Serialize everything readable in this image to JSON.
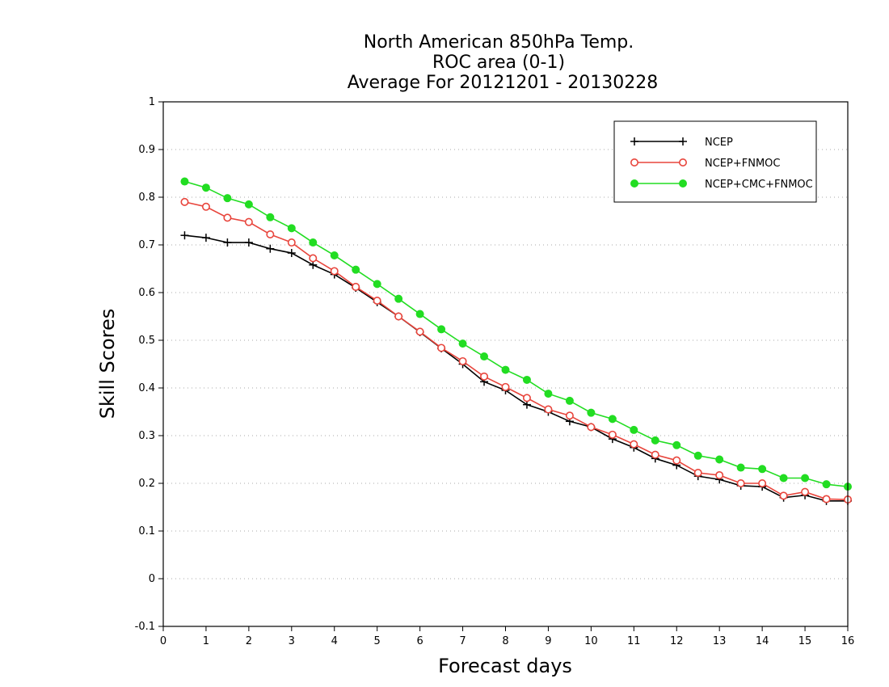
{
  "chart_data": {
    "type": "line",
    "title": [
      "North American 850hPa Temp.",
      "ROC area (0-1)",
      "Average For 20121201 - 20130228"
    ],
    "xlabel": "Forecast days",
    "ylabel": "Skill Scores",
    "xlim": [
      0,
      16
    ],
    "ylim": [
      -0.1,
      1
    ],
    "x_ticks": [
      0,
      1,
      2,
      3,
      4,
      5,
      6,
      7,
      8,
      9,
      10,
      11,
      12,
      13,
      14,
      15,
      16
    ],
    "y_ticks": [
      -0.1,
      0,
      0.1,
      0.2,
      0.3,
      0.4,
      0.5,
      0.6,
      0.7,
      0.8,
      0.9,
      1
    ],
    "y_tick_labels": [
      "-0.1",
      "0",
      "0.1",
      "0.2",
      "0.3",
      "0.4",
      "0.5",
      "0.6",
      "0.7",
      "0.8",
      "0.9",
      "1"
    ],
    "grid": "horizontal dotted",
    "legend_position": "top-right",
    "x": [
      0.5,
      1,
      1.5,
      2,
      2.5,
      3,
      3.5,
      4,
      4.5,
      5,
      5.5,
      6,
      6.5,
      7,
      7.5,
      8,
      8.5,
      9,
      9.5,
      10,
      10.5,
      11,
      11.5,
      12,
      12.5,
      13,
      13.5,
      14,
      14.5,
      15,
      15.5,
      16
    ],
    "series": [
      {
        "name": "NCEP",
        "color": "#000000",
        "marker": "plus",
        "values": [
          0.72,
          0.715,
          0.705,
          0.705,
          0.692,
          0.683,
          0.658,
          0.638,
          0.61,
          0.58,
          0.55,
          0.517,
          0.483,
          0.45,
          0.413,
          0.395,
          0.365,
          0.35,
          0.33,
          0.318,
          0.293,
          0.275,
          0.252,
          0.238,
          0.215,
          0.208,
          0.195,
          0.193,
          0.17,
          0.175,
          0.163,
          0.163
        ]
      },
      {
        "name": "NCEP+FNMOC",
        "color": "#e8453c",
        "marker": "open-circle",
        "values": [
          0.79,
          0.78,
          0.757,
          0.748,
          0.722,
          0.705,
          0.672,
          0.645,
          0.612,
          0.583,
          0.55,
          0.518,
          0.484,
          0.456,
          0.424,
          0.402,
          0.379,
          0.355,
          0.342,
          0.318,
          0.302,
          0.282,
          0.26,
          0.248,
          0.222,
          0.217,
          0.2,
          0.2,
          0.174,
          0.182,
          0.167,
          0.166
        ]
      },
      {
        "name": "NCEP+CMC+FNMOC",
        "color": "#22dd22",
        "marker": "filled-circle",
        "values": [
          0.833,
          0.82,
          0.798,
          0.785,
          0.758,
          0.735,
          0.705,
          0.678,
          0.648,
          0.618,
          0.587,
          0.555,
          0.523,
          0.493,
          0.466,
          0.438,
          0.417,
          0.388,
          0.373,
          0.348,
          0.335,
          0.312,
          0.29,
          0.28,
          0.258,
          0.25,
          0.233,
          0.23,
          0.211,
          0.211,
          0.198,
          0.193
        ]
      }
    ]
  }
}
